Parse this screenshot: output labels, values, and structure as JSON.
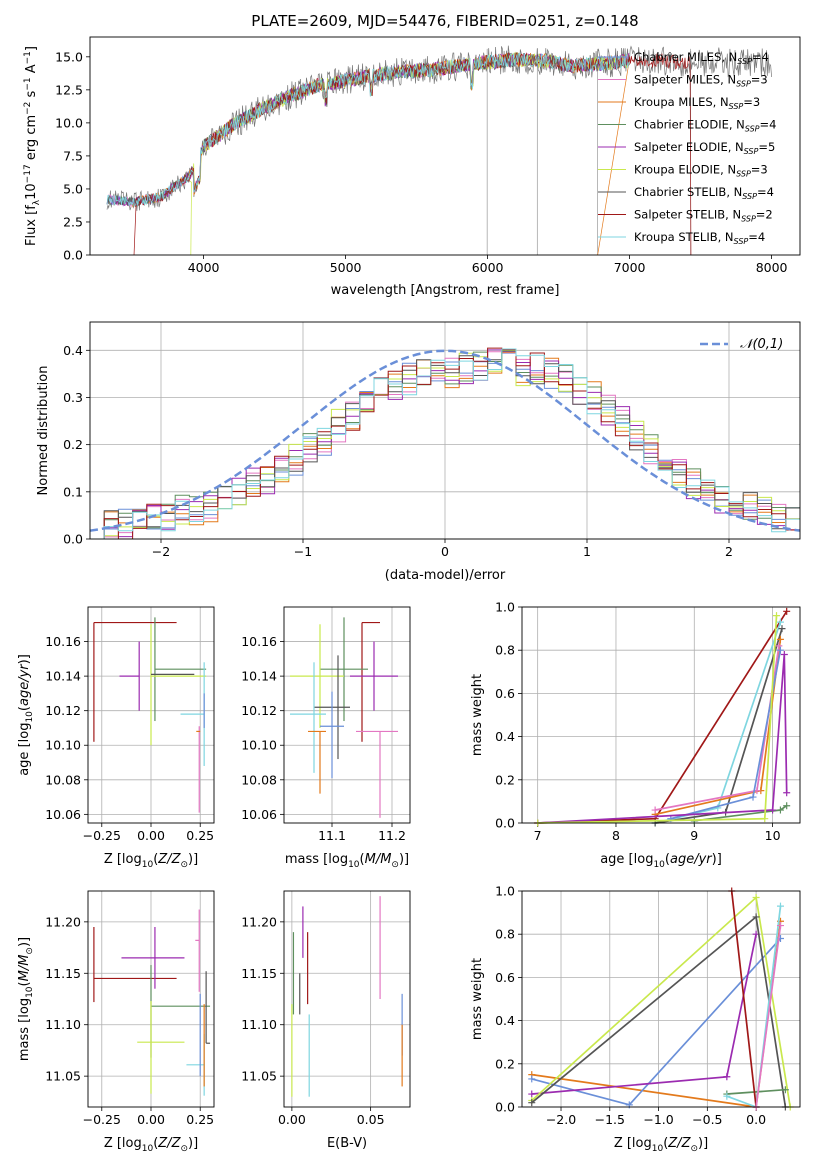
{
  "figure_title": "PLATE=2609, MJD=54476, FIBERID=0251, z=0.148",
  "colors": {
    "Chabrier MILES": "#6a8fd8",
    "Salpeter MILES": "#e377c2",
    "Kroupa MILES": "#e37a1c",
    "Chabrier ELODIE": "#5e8f5e",
    "Salpeter ELODIE": "#9b2bb0",
    "Kroupa ELODIE": "#c9e84d",
    "Chabrier STELIB": "#555555",
    "Salpeter STELIB": "#a01818",
    "Kroupa STELIB": "#7fd6e0",
    "gaussian": "#6a8fd8"
  },
  "chart_data": [
    {
      "id": "spectrum",
      "type": "line",
      "title": "PLATE=2609, MJD=54476, FIBERID=0251, z=0.148",
      "xlabel": "wavelength [Angstrom, rest frame]",
      "ylabel": "Flux [f_λ 10^-17 erg cm^-2 s^-1 A^-1]",
      "xlim": [
        3200,
        8200
      ],
      "ylim": [
        0,
        16.5
      ],
      "xticks": [
        "4000",
        "5000",
        "6000",
        "7000",
        "8000"
      ],
      "yticks": [
        "0.0",
        "2.5",
        "5.0",
        "7.5",
        "10.0",
        "12.5",
        "15.0"
      ],
      "grid": false,
      "legend_position": "right",
      "series": [
        {
          "name": "Chabrier MILES, N_SSP=4",
          "nssp": "4"
        },
        {
          "name": "Salpeter MILES, N_SSP=3",
          "nssp": "3"
        },
        {
          "name": "Kroupa MILES, N_SSP=3",
          "nssp": "3"
        },
        {
          "name": "Chabrier ELODIE, N_SSP=4",
          "nssp": "4"
        },
        {
          "name": "Salpeter ELODIE, N_SSP=5",
          "nssp": "5"
        },
        {
          "name": "Kroupa ELODIE, N_SSP=3",
          "nssp": "3"
        },
        {
          "name": "Chabrier STELIB, N_SSP=4",
          "nssp": "4"
        },
        {
          "name": "Salpeter STELIB, N_SSP=2",
          "nssp": "2"
        },
        {
          "name": "Kroupa STELIB, N_SSP=4",
          "nssp": "4"
        }
      ],
      "continuum_x": [
        3320,
        3500,
        3700,
        3900,
        4000,
        4200,
        4400,
        4600,
        4800,
        5000,
        5200,
        5400,
        5600,
        5800,
        6000,
        6200,
        6400,
        6600,
        6800,
        7000,
        7200,
        7400,
        7600,
        7800,
        8000
      ],
      "continuum_y": [
        4.2,
        4.0,
        4.4,
        6.0,
        8.2,
        9.8,
        11.0,
        12.0,
        12.8,
        13.2,
        13.6,
        13.9,
        14.0,
        14.3,
        14.6,
        14.8,
        14.7,
        14.3,
        14.5,
        14.7,
        14.7,
        14.6,
        14.6,
        14.6,
        14.5
      ],
      "spike_lines_x": [
        5997,
        6350,
        6775,
        7430
      ]
    },
    {
      "id": "residuals",
      "type": "histogram",
      "xlabel": "(data-model)/error",
      "ylabel": "Normed distribution",
      "xlim": [
        -2.5,
        2.5
      ],
      "ylim": [
        0,
        0.46
      ],
      "xticks": [
        "−2",
        "−1",
        "0",
        "1",
        "2"
      ],
      "yticks": [
        "0.0",
        "0.1",
        "0.2",
        "0.3",
        "0.4"
      ],
      "grid": true,
      "legend_position": "top-right",
      "legend": "𝒩(0,1)",
      "bin_width": 0.1,
      "bins_start": -2.5,
      "base_hist": [
        0.02,
        0.03,
        0.03,
        0.04,
        0.05,
        0.05,
        0.06,
        0.06,
        0.07,
        0.09,
        0.1,
        0.12,
        0.13,
        0.15,
        0.17,
        0.19,
        0.21,
        0.24,
        0.26,
        0.29,
        0.31,
        0.33,
        0.34,
        0.35,
        0.35,
        0.35,
        0.36,
        0.37,
        0.37,
        0.37,
        0.36,
        0.36,
        0.35,
        0.34,
        0.32,
        0.3,
        0.27,
        0.25,
        0.22,
        0.19,
        0.17,
        0.14,
        0.12,
        0.1,
        0.09,
        0.08,
        0.07,
        0.06,
        0.05,
        0.05
      ]
    },
    {
      "id": "age-vs-Z",
      "type": "errorbar",
      "xlabel": "Z [log10(Z/Z☉)]",
      "ylabel": "age  [log10(age/yr)]",
      "xlim": [
        -0.32,
        0.32
      ],
      "ylim": [
        10.055,
        10.18
      ],
      "xticks": [
        "−0.25",
        "0.00",
        "0.25"
      ],
      "yticks": [
        "10.06",
        "10.08",
        "10.10",
        "10.12",
        "10.14",
        "10.16"
      ],
      "grid": true,
      "points": [
        {
          "model": "Salpeter STELIB",
          "x": -0.29,
          "y": 10.171,
          "xerr": [
            0.0,
            0.42
          ],
          "yerr": [
            0.069,
            0.0
          ]
        },
        {
          "model": "Salpeter ELODIE",
          "x": -0.06,
          "y": 10.14,
          "xerr": [
            0.1,
            0.0
          ],
          "yerr": [
            0.02,
            0.02
          ]
        },
        {
          "model": "Chabrier ELODIE",
          "x": 0.02,
          "y": 10.144,
          "xerr": [
            0.0,
            0.26
          ],
          "yerr": [
            0.03,
            0.03
          ]
        },
        {
          "model": "Kroupa ELODIE",
          "x": 0.0,
          "y": 10.14,
          "xerr": [
            0.0,
            0.28
          ],
          "yerr": [
            0.04,
            0.03
          ]
        },
        {
          "model": "Chabrier STELIB",
          "x": 0.0,
          "y": 10.141,
          "xerr": [
            0.0,
            0.22
          ],
          "yerr": [
            0.0,
            0.0
          ]
        },
        {
          "model": "Kroupa STELIB",
          "x": 0.27,
          "y": 10.118,
          "xerr": [
            0.12,
            0.0
          ],
          "yerr": [
            0.03,
            0.03
          ]
        },
        {
          "model": "Salpeter MILES",
          "x": 0.245,
          "y": 10.111,
          "xerr": [
            0.0,
            0.0
          ],
          "yerr": [
            0.05,
            0.0
          ]
        },
        {
          "model": "Chabrier MILES",
          "x": 0.27,
          "y": 10.12,
          "xerr": [
            0.0,
            0.0
          ],
          "yerr": [
            0.01,
            0.01
          ]
        },
        {
          "model": "Kroupa MILES",
          "x": 0.25,
          "y": 10.108,
          "xerr": [
            0.02,
            0.0
          ],
          "yerr": [
            0.0,
            0.0
          ]
        }
      ]
    },
    {
      "id": "age-vs-mass",
      "type": "errorbar",
      "xlabel": "mass [log10(M/M☉)]",
      "ylabel": "",
      "xlim": [
        11.02,
        11.23
      ],
      "ylim": [
        10.055,
        10.18
      ],
      "xticks": [
        "11.1",
        "11.2"
      ],
      "yticks": [
        "10.06",
        "10.08",
        "10.10",
        "10.12",
        "10.14",
        "10.16"
      ],
      "grid": true,
      "points": [
        {
          "model": "Salpeter STELIB",
          "x": 11.15,
          "y": 10.171,
          "xerr": [
            0.0,
            0.03
          ],
          "yerr": [
            0.069,
            0.0
          ]
        },
        {
          "model": "Salpeter ELODIE",
          "x": 11.17,
          "y": 10.14,
          "xerr": [
            0.04,
            0.04
          ],
          "yerr": [
            0.02,
            0.02
          ]
        },
        {
          "model": "Chabrier ELODIE",
          "x": 11.12,
          "y": 10.144,
          "xerr": [
            0.04,
            0.04
          ],
          "yerr": [
            0.03,
            0.03
          ]
        },
        {
          "model": "Kroupa ELODIE",
          "x": 11.08,
          "y": 10.14,
          "xerr": [
            0.05,
            0.04
          ],
          "yerr": [
            0.03,
            0.03
          ]
        },
        {
          "model": "Chabrier STELIB",
          "x": 11.11,
          "y": 10.122,
          "xerr": [
            0.04,
            0.02
          ],
          "yerr": [
            0.03,
            0.03
          ]
        },
        {
          "model": "Kroupa STELIB",
          "x": 11.07,
          "y": 10.118,
          "xerr": [
            0.04,
            0.02
          ],
          "yerr": [
            0.034,
            0.03
          ]
        },
        {
          "model": "Salpeter MILES",
          "x": 11.18,
          "y": 10.108,
          "xerr": [
            0.04,
            0.03
          ],
          "yerr": [
            0.05,
            0.0
          ]
        },
        {
          "model": "Chabrier MILES",
          "x": 11.1,
          "y": 10.111,
          "xerr": [
            0.02,
            0.02
          ],
          "yerr": [
            0.03,
            0.02
          ]
        },
        {
          "model": "Kroupa MILES",
          "x": 11.08,
          "y": 10.108,
          "xerr": [
            0.02,
            0.01
          ],
          "yerr": [
            0.036,
            0.0
          ]
        }
      ]
    },
    {
      "id": "mass-weight-vs-age",
      "type": "line",
      "xlabel": "age  [log10(age/yr)]",
      "ylabel": "mass weight",
      "xlim": [
        6.8,
        10.35
      ],
      "ylim": [
        0,
        1.0
      ],
      "xticks": [
        "7",
        "8",
        "9",
        "10"
      ],
      "yticks": [
        "0.0",
        "0.2",
        "0.4",
        "0.6",
        "0.8",
        "1.0"
      ],
      "grid": true,
      "series": [
        {
          "model": "Salpeter STELIB",
          "x": [
            7.0,
            8.5,
            10.18
          ],
          "y": [
            0.0,
            0.02,
            0.98
          ]
        },
        {
          "model": "Kroupa STELIB",
          "x": [
            8.5,
            9.3,
            10.1
          ],
          "y": [
            0.0,
            0.07,
            0.93
          ]
        },
        {
          "model": "Chabrier STELIB",
          "x": [
            8.5,
            9.4,
            10.12
          ],
          "y": [
            0.0,
            0.05,
            0.9
          ]
        },
        {
          "model": "Chabrier ELODIE",
          "x": [
            9.0,
            10.1,
            10.18
          ],
          "y": [
            0.01,
            0.06,
            0.08
          ]
        },
        {
          "model": "Kroupa MILES",
          "x": [
            8.5,
            9.85,
            10.1
          ],
          "y": [
            0.04,
            0.15,
            0.85
          ]
        },
        {
          "model": "Salpeter MILES",
          "x": [
            8.5,
            9.8,
            10.08
          ],
          "y": [
            0.06,
            0.15,
            0.82
          ]
        },
        {
          "model": "Chabrier MILES",
          "x": [
            8.7,
            9.75,
            10.1
          ],
          "y": [
            0.02,
            0.12,
            0.8
          ]
        },
        {
          "model": "Salpeter ELODIE",
          "x": [
            7.0,
            10.0,
            10.15,
            10.18
          ],
          "y": [
            0.0,
            0.06,
            0.78,
            0.14
          ]
        },
        {
          "model": "Kroupa ELODIE",
          "x": [
            7.0,
            9.9,
            10.05
          ],
          "y": [
            0.0,
            0.02,
            0.96
          ]
        }
      ]
    },
    {
      "id": "mass-vs-Z",
      "type": "errorbar",
      "xlabel": "Z [log10(Z/Z☉)]",
      "ylabel": "mass [log10(M/M☉)]",
      "xlim": [
        -0.32,
        0.32
      ],
      "ylim": [
        11.02,
        11.23
      ],
      "xticks": [
        "−0.25",
        "0.00",
        "0.25"
      ],
      "yticks": [
        "11.05",
        "11.10",
        "11.15",
        "11.20"
      ],
      "grid": true,
      "points": [
        {
          "model": "Salpeter STELIB",
          "x": -0.29,
          "y": 11.145,
          "xerr": [
            0.0,
            0.42
          ],
          "yerr": [
            0.023,
            0.05
          ]
        },
        {
          "model": "Salpeter ELODIE",
          "x": 0.02,
          "y": 11.165,
          "xerr": [
            0.17,
            0.15
          ],
          "yerr": [
            0.03,
            0.03
          ]
        },
        {
          "model": "Chabrier ELODIE",
          "x": 0.0,
          "y": 11.118,
          "xerr": [
            0.0,
            0.3
          ],
          "yerr": [
            0.05,
            0.04
          ]
        },
        {
          "model": "Kroupa ELODIE",
          "x": 0.0,
          "y": 11.083,
          "xerr": [
            0.07,
            0.17
          ],
          "yerr": [
            0.05,
            0.04
          ]
        },
        {
          "model": "Chabrier STELIB",
          "x": 0.28,
          "y": 11.082,
          "xerr": [
            0.0,
            0.02
          ],
          "yerr": [
            0.0,
            0.07
          ]
        },
        {
          "model": "Kroupa STELIB",
          "x": 0.27,
          "y": 11.061,
          "xerr": [
            0.09,
            0.0
          ],
          "yerr": [
            0.03,
            0.03
          ]
        },
        {
          "model": "Salpeter MILES",
          "x": 0.245,
          "y": 11.182,
          "xerr": [
            0.02,
            0.0
          ],
          "yerr": [
            0.05,
            0.03
          ]
        },
        {
          "model": "Chabrier MILES",
          "x": 0.25,
          "y": 11.09,
          "xerr": [
            0.0,
            0.0
          ],
          "yerr": [
            0.04,
            0.04
          ]
        },
        {
          "model": "Kroupa MILES",
          "x": 0.27,
          "y": 11.08,
          "xerr": [
            0.0,
            0.0
          ],
          "yerr": [
            0.04,
            0.04
          ]
        }
      ]
    },
    {
      "id": "mass-vs-ebv",
      "type": "errorbar",
      "xlabel": "E(B-V)",
      "ylabel": "",
      "xlim": [
        -0.005,
        0.075
      ],
      "ylim": [
        11.02,
        11.23
      ],
      "xticks": [
        "0.00",
        "0.05"
      ],
      "yticks": [
        "11.05",
        "11.10",
        "11.15",
        "11.20"
      ],
      "grid": true,
      "points": [
        {
          "model": "Salpeter STELIB",
          "x": 0.01,
          "y": 11.15,
          "xerr": [
            0.0,
            0.0
          ],
          "yerr": [
            0.03,
            0.04
          ]
        },
        {
          "model": "Salpeter ELODIE",
          "x": 0.007,
          "y": 11.195,
          "xerr": [
            0.0,
            0.0
          ],
          "yerr": [
            0.03,
            0.02
          ]
        },
        {
          "model": "Chabrier ELODIE",
          "x": 0.001,
          "y": 11.15,
          "xerr": [
            0.0,
            0.0
          ],
          "yerr": [
            0.04,
            0.04
          ]
        },
        {
          "model": "Kroupa ELODIE",
          "x": 0.0,
          "y": 11.08,
          "xerr": [
            0.0,
            0.0
          ],
          "yerr": [
            0.05,
            0.04
          ]
        },
        {
          "model": "Chabrier STELIB",
          "x": 0.005,
          "y": 11.13,
          "xerr": [
            0.0,
            0.0
          ],
          "yerr": [
            0.02,
            0.02
          ]
        },
        {
          "model": "Kroupa STELIB",
          "x": 0.011,
          "y": 11.08,
          "xerr": [
            0.0,
            0.0
          ],
          "yerr": [
            0.05,
            0.03
          ]
        },
        {
          "model": "Salpeter MILES",
          "x": 0.056,
          "y": 11.165,
          "xerr": [
            0.0,
            0.0
          ],
          "yerr": [
            0.04,
            0.06
          ]
        },
        {
          "model": "Chabrier MILES",
          "x": 0.07,
          "y": 11.1,
          "xerr": [
            0.0,
            0.0
          ],
          "yerr": [
            0.03,
            0.03
          ]
        },
        {
          "model": "Kroupa MILES",
          "x": 0.07,
          "y": 11.07,
          "xerr": [
            0.0,
            0.0
          ],
          "yerr": [
            0.03,
            0.03
          ]
        }
      ]
    },
    {
      "id": "mass-weight-vs-Z",
      "type": "line",
      "xlabel": "Z [log10(Z/Z☉)]",
      "ylabel": "mass weight",
      "xlim": [
        -2.4,
        0.45
      ],
      "ylim": [
        0,
        1.0
      ],
      "xticks": [
        "−2.0",
        "−1.5",
        "−1.0",
        "−0.5",
        "0.0"
      ],
      "yticks": [
        "0.0",
        "0.2",
        "0.4",
        "0.6",
        "0.8",
        "1.0"
      ],
      "grid": true,
      "series": [
        {
          "model": "Kroupa MILES",
          "x": [
            -2.3,
            0.0,
            0.25
          ],
          "y": [
            0.15,
            0.0,
            0.86
          ]
        },
        {
          "model": "Chabrier MILES",
          "x": [
            -2.3,
            -1.3,
            0.25
          ],
          "y": [
            0.13,
            0.01,
            0.78
          ]
        },
        {
          "model": "Salpeter ELODIE",
          "x": [
            -2.3,
            -0.3,
            0.0
          ],
          "y": [
            0.06,
            0.14,
            0.8
          ]
        },
        {
          "model": "Kroupa ELODIE",
          "x": [
            -2.3,
            0.0,
            0.35
          ],
          "y": [
            0.03,
            0.97,
            0.0
          ]
        },
        {
          "model": "Chabrier STELIB",
          "x": [
            -2.3,
            0.0,
            0.3
          ],
          "y": [
            0.02,
            0.88,
            0.0
          ]
        },
        {
          "model": "Chabrier ELODIE",
          "x": [
            -0.3,
            0.3
          ],
          "y": [
            0.06,
            0.08
          ]
        },
        {
          "model": "Kroupa STELIB",
          "x": [
            -0.3,
            0.0,
            0.25
          ],
          "y": [
            0.05,
            0.0,
            0.93
          ]
        },
        {
          "model": "Salpeter STELIB",
          "x": [
            -0.25,
            0.0
          ],
          "y": [
            1.0,
            0.0
          ]
        },
        {
          "model": "Salpeter MILES",
          "x": [
            0.0,
            0.25
          ],
          "y": [
            0.0,
            0.84
          ]
        }
      ]
    }
  ]
}
